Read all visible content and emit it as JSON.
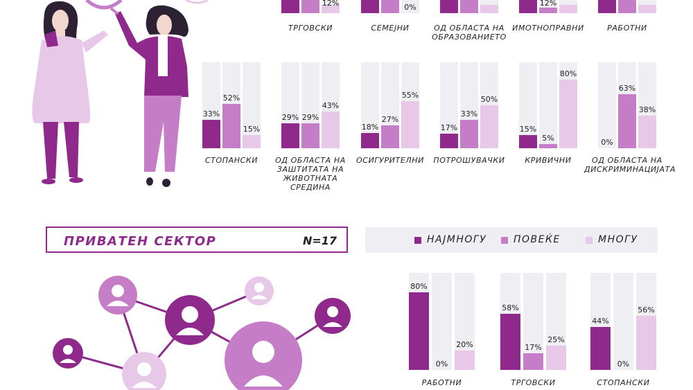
{
  "colors": {
    "najmnogu": "#8f2a8c",
    "poveke": "#c47dc6",
    "mnogu": "#e7c8e8",
    "track": "#efeef3"
  },
  "sector": {
    "title": "ПРИВАТЕН СЕКТОР",
    "n": "N=17"
  },
  "legend": [
    "НАЈМНОГУ",
    "ПОВЕЌЕ",
    "МНОГУ"
  ],
  "chart_data": [
    {
      "type": "bar",
      "panel": "top-row",
      "series_names": [
        "НАЈМНОГУ",
        "ПОВЕЌЕ",
        "МНОГУ"
      ],
      "groups": [
        {
          "label": [
            "ТРГОВСКИ"
          ],
          "values": [
            null,
            null,
            null
          ],
          "labels": [
            "",
            "",
            "12%"
          ]
        },
        {
          "label": [
            "СЕМЕЈНИ"
          ],
          "values": [
            null,
            null,
            0
          ],
          "labels": [
            "",
            "",
            "0%"
          ]
        },
        {
          "label": [
            "ОД ОБЛАСТА НА",
            "ОБРАЗОВАНИЕТО"
          ],
          "values": [
            null,
            null,
            null
          ],
          "labels": [
            "",
            "",
            ""
          ]
        },
        {
          "label": [
            "ИМОТНОПРАВНИ"
          ],
          "values": [
            null,
            12,
            null
          ],
          "labels": [
            "",
            "12%",
            ""
          ]
        },
        {
          "label": [
            "РАБОТНИ"
          ],
          "values": [
            null,
            null,
            null
          ],
          "labels": [
            "",
            "",
            ""
          ]
        }
      ]
    },
    {
      "type": "bar",
      "panel": "middle-row",
      "series_names": [
        "НАЈМНОГУ",
        "ПОВЕЌЕ",
        "МНОГУ"
      ],
      "groups": [
        {
          "label": [
            "СТОПАНСКИ"
          ],
          "values": [
            33,
            52,
            15
          ],
          "labels": [
            "33%",
            "52%",
            "15%"
          ]
        },
        {
          "label": [
            "ОД ОБЛАСТА НА",
            "ЗАШТИТАТА НА",
            "ЖИВОТНАТА",
            "СРЕДИНА"
          ],
          "values": [
            29,
            29,
            43
          ],
          "labels": [
            "29%",
            "29%",
            "43%"
          ]
        },
        {
          "label": [
            "ОСИГУРИТЕЛНИ"
          ],
          "values": [
            18,
            27,
            55
          ],
          "labels": [
            "18%",
            "27%",
            "55%"
          ]
        },
        {
          "label": [
            "ПОТРОШУВАЧКИ"
          ],
          "values": [
            17,
            33,
            50
          ],
          "labels": [
            "17%",
            "33%",
            "50%"
          ]
        },
        {
          "label": [
            "КРИВИЧНИ"
          ],
          "values": [
            15,
            5,
            80
          ],
          "labels": [
            "15%",
            "5%",
            "80%"
          ]
        },
        {
          "label": [
            "ОД ОБЛАСТА НА",
            "ДИСКРИМИНАЦИЈАТА"
          ],
          "values": [
            0,
            63,
            38
          ],
          "labels": [
            "0%",
            "63%",
            "38%"
          ]
        }
      ]
    },
    {
      "type": "bar",
      "panel": "private-sector",
      "series_names": [
        "НАЈМНОГУ",
        "ПОВЕЌЕ",
        "МНОГУ"
      ],
      "groups": [
        {
          "label": [
            "РАБОТНИ"
          ],
          "values": [
            80,
            0,
            20
          ],
          "labels": [
            "80%",
            "0%",
            "20%"
          ]
        },
        {
          "label": [
            "ТРГОВСКИ"
          ],
          "values": [
            58,
            17,
            25
          ],
          "labels": [
            "58%",
            "17%",
            "25%"
          ]
        },
        {
          "label": [
            "СТОПАНСКИ"
          ],
          "values": [
            44,
            0,
            56
          ],
          "labels": [
            "44%",
            "0%",
            "56%"
          ]
        }
      ]
    }
  ]
}
